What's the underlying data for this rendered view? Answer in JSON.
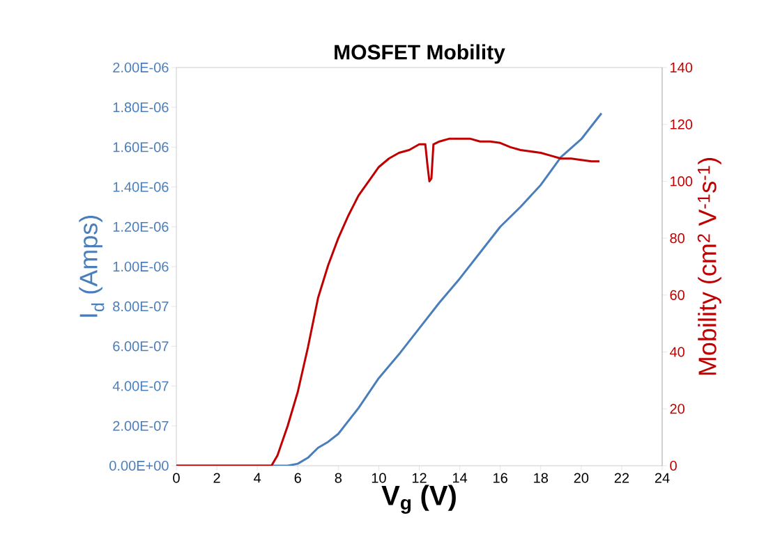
{
  "chart_data": {
    "type": "line",
    "title": "MOSFET Mobility",
    "xlabel": "V$_{g}$ (V)",
    "ylabel": "I$_{d}$ (Amps)",
    "y2label": "Mobility (cm$^{2}$ V$^{-1}$s$^{-1}$)",
    "xlim": [
      0,
      24
    ],
    "xticks": [
      0,
      2,
      4,
      6,
      8,
      10,
      12,
      14,
      16,
      18,
      20,
      22,
      24
    ],
    "ylim": [
      0,
      2e-06
    ],
    "yticks": [
      {
        "value": 0,
        "label": "0.00E+00"
      },
      {
        "value": 2e-07,
        "label": "2.00E-07"
      },
      {
        "value": 4e-07,
        "label": "4.00E-07"
      },
      {
        "value": 6e-07,
        "label": "6.00E-07"
      },
      {
        "value": 8e-07,
        "label": "8.00E-07"
      },
      {
        "value": 1e-06,
        "label": "1.00E-06"
      },
      {
        "value": 1.2e-06,
        "label": "1.20E-06"
      },
      {
        "value": 1.4e-06,
        "label": "1.40E-06"
      },
      {
        "value": 1.6e-06,
        "label": "1.60E-06"
      },
      {
        "value": 1.8e-06,
        "label": "1.80E-06"
      },
      {
        "value": 2e-06,
        "label": "2.00E-06"
      }
    ],
    "y2lim": [
      0,
      140
    ],
    "y2ticks": [
      0,
      20,
      40,
      60,
      80,
      100,
      120,
      140
    ],
    "grid": false,
    "marker": "none",
    "line_style": "solid",
    "series": [
      {
        "color": "#4a7ebb",
        "x": [
          0,
          5,
          5.5,
          6,
          6.5,
          7,
          7.5,
          8,
          9,
          10,
          11,
          12,
          13,
          14,
          15,
          16,
          17,
          18,
          19,
          20,
          21
        ],
        "values": [
          0,
          0,
          0,
          1e-08,
          4e-08,
          9e-08,
          1.2e-07,
          1.6e-07,
          2.9e-07,
          4.4e-07,
          5.6e-07,
          6.9e-07,
          8.2e-07,
          9.4e-07,
          1.07e-06,
          1.2e-06,
          1.3e-06,
          1.41e-06,
          1.55e-06,
          1.64e-06,
          1.77e-06
        ]
      },
      {
        "color": "#c00000",
        "axis": "y2",
        "x": [
          0,
          1,
          2,
          3,
          4,
          4.7,
          5,
          5.5,
          6,
          6.5,
          7,
          7.5,
          8,
          8.5,
          9,
          9.5,
          10,
          10.5,
          11,
          11.5,
          12,
          12.3,
          12.4,
          12.5,
          12.6,
          12.7,
          13,
          13.5,
          14,
          14.5,
          15,
          15.5,
          16,
          16.5,
          17,
          17.5,
          18,
          18.5,
          19,
          19.5,
          20,
          20.5,
          20.9
        ],
        "values": [
          0,
          0,
          0,
          0,
          0,
          0,
          3.7,
          14,
          26,
          41.6,
          59,
          70.5,
          80,
          88,
          95,
          100,
          105,
          108,
          110,
          111,
          113,
          113,
          106,
          100,
          101,
          113,
          114,
          115,
          115,
          115,
          114,
          114,
          113.5,
          112,
          111,
          110.5,
          110,
          109,
          108,
          108,
          107.5,
          107,
          107
        ]
      }
    ]
  }
}
